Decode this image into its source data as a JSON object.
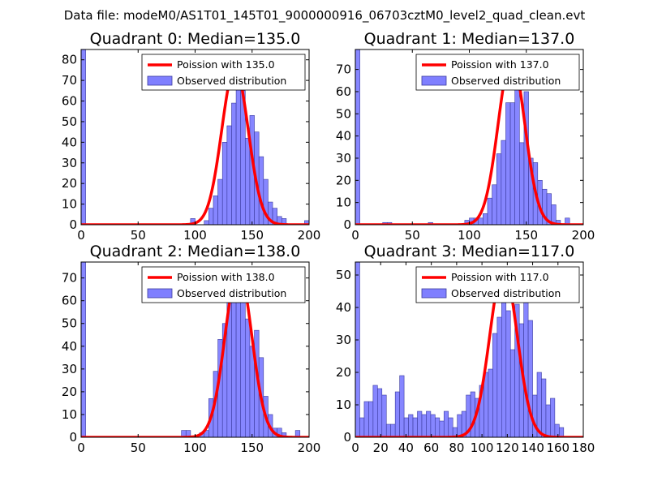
{
  "suptitle": "Data file: modeM0/AS1T01_145T01_9000000916_06703cztM0_level2_quad_clean.evt",
  "colors": {
    "bar_fill": "#7f7fff",
    "bar_edge": "#3b3b9e",
    "poisson_line": "#ff0000",
    "axes": "#000000",
    "legend_edge": "#000000"
  },
  "chart_data": [
    {
      "type": "bar",
      "title": "Quadrant 0: Median=135.0",
      "xlim": [
        0,
        200
      ],
      "ylim": [
        0,
        85
      ],
      "xticks": [
        "0",
        "50",
        "100",
        "150",
        "200"
      ],
      "xtick_values": [
        0,
        50,
        100,
        150,
        200
      ],
      "yticks": [
        "0",
        "10",
        "20",
        "30",
        "40",
        "50",
        "60",
        "70",
        "80"
      ],
      "ytick_values": [
        0,
        10,
        20,
        30,
        40,
        50,
        60,
        70,
        80
      ],
      "legend": [
        "Poission with 135.0",
        "Observed distribution"
      ],
      "poisson_mean": 135.0,
      "poisson_peak": 76,
      "poisson_sigma": 11.6,
      "bin_width": 4,
      "bins": [
        [
          0,
          85
        ],
        [
          96,
          3
        ],
        [
          108,
          2
        ],
        [
          112,
          8
        ],
        [
          116,
          14
        ],
        [
          120,
          22
        ],
        [
          124,
          40
        ],
        [
          128,
          48
        ],
        [
          132,
          59
        ],
        [
          136,
          67
        ],
        [
          140,
          65
        ],
        [
          144,
          42
        ],
        [
          148,
          53
        ],
        [
          152,
          45
        ],
        [
          156,
          33
        ],
        [
          160,
          22
        ],
        [
          164,
          11
        ],
        [
          168,
          8
        ],
        [
          172,
          4
        ],
        [
          176,
          3
        ],
        [
          196,
          2
        ]
      ]
    },
    {
      "type": "bar",
      "title": "Quadrant 1: Median=137.0",
      "xlim": [
        0,
        200
      ],
      "ylim": [
        0,
        79
      ],
      "xticks": [
        "0",
        "50",
        "100",
        "150",
        "200"
      ],
      "xtick_values": [
        0,
        50,
        100,
        150,
        200
      ],
      "yticks": [
        "0",
        "10",
        "20",
        "30",
        "40",
        "50",
        "60",
        "70"
      ],
      "ytick_values": [
        0,
        10,
        20,
        30,
        40,
        50,
        60,
        70
      ],
      "legend": [
        "Poission with 137.0",
        "Observed distribution"
      ],
      "poisson_mean": 137.0,
      "poisson_peak": 75,
      "poisson_sigma": 11.7,
      "bin_width": 4,
      "bins": [
        [
          0,
          79
        ],
        [
          24,
          1
        ],
        [
          28,
          1
        ],
        [
          64,
          1
        ],
        [
          96,
          2
        ],
        [
          100,
          3
        ],
        [
          104,
          3
        ],
        [
          108,
          3
        ],
        [
          112,
          5
        ],
        [
          116,
          12
        ],
        [
          120,
          18
        ],
        [
          124,
          32
        ],
        [
          128,
          38
        ],
        [
          132,
          55
        ],
        [
          136,
          55
        ],
        [
          140,
          65
        ],
        [
          144,
          37
        ],
        [
          148,
          60
        ],
        [
          152,
          30
        ],
        [
          156,
          28
        ],
        [
          160,
          20
        ],
        [
          164,
          16
        ],
        [
          168,
          14
        ],
        [
          172,
          9
        ],
        [
          176,
          2
        ],
        [
          184,
          3
        ]
      ]
    },
    {
      "type": "bar",
      "title": "Quadrant 2: Median=138.0",
      "xlim": [
        0,
        200
      ],
      "ylim": [
        0,
        77
      ],
      "xticks": [
        "0",
        "50",
        "100",
        "150",
        "200"
      ],
      "xtick_values": [
        0,
        50,
        100,
        150,
        200
      ],
      "yticks": [
        "0",
        "10",
        "20",
        "30",
        "40",
        "50",
        "60",
        "70"
      ],
      "ytick_values": [
        0,
        10,
        20,
        30,
        40,
        50,
        60,
        70
      ],
      "legend": [
        "Poission with 138.0",
        "Observed distribution"
      ],
      "poisson_mean": 138.0,
      "poisson_peak": 74,
      "poisson_sigma": 11.7,
      "bin_width": 4,
      "bins": [
        [
          0,
          77
        ],
        [
          88,
          3
        ],
        [
          92,
          3
        ],
        [
          104,
          2
        ],
        [
          108,
          3
        ],
        [
          112,
          17
        ],
        [
          116,
          29
        ],
        [
          120,
          43
        ],
        [
          124,
          50
        ],
        [
          128,
          60
        ],
        [
          132,
          65
        ],
        [
          136,
          68
        ],
        [
          140,
          63
        ],
        [
          144,
          52
        ],
        [
          148,
          40
        ],
        [
          152,
          47
        ],
        [
          156,
          35
        ],
        [
          160,
          18
        ],
        [
          164,
          10
        ],
        [
          168,
          4
        ],
        [
          172,
          4
        ],
        [
          176,
          2
        ],
        [
          188,
          3
        ]
      ]
    },
    {
      "type": "bar",
      "title": "Quadrant 3: Median=117.0",
      "xlim": [
        0,
        180
      ],
      "ylim": [
        0,
        54
      ],
      "xticks": [
        "0",
        "20",
        "40",
        "60",
        "80",
        "100",
        "120",
        "140",
        "160",
        "180"
      ],
      "xtick_values": [
        0,
        20,
        40,
        60,
        80,
        100,
        120,
        140,
        160,
        180
      ],
      "yticks": [
        "0",
        "10",
        "20",
        "30",
        "40",
        "50"
      ],
      "ytick_values": [
        0,
        10,
        20,
        30,
        40,
        50
      ],
      "legend": [
        "Poission with 117.0",
        "Observed distribution"
      ],
      "poisson_mean": 117.0,
      "poisson_peak": 52,
      "poisson_sigma": 10.8,
      "bin_width": 3.5,
      "bins": [
        [
          0,
          54
        ],
        [
          3.5,
          6
        ],
        [
          7,
          11
        ],
        [
          10.5,
          11
        ],
        [
          14,
          16
        ],
        [
          17.5,
          15
        ],
        [
          21,
          13
        ],
        [
          24.5,
          4
        ],
        [
          28,
          4
        ],
        [
          31.5,
          14
        ],
        [
          35,
          19
        ],
        [
          38.5,
          6
        ],
        [
          42,
          7
        ],
        [
          45.5,
          6
        ],
        [
          49,
          8
        ],
        [
          52.5,
          7
        ],
        [
          56,
          8
        ],
        [
          59.5,
          7
        ],
        [
          63,
          6
        ],
        [
          66.5,
          5
        ],
        [
          70,
          8
        ],
        [
          73.5,
          6
        ],
        [
          77,
          3
        ],
        [
          80.5,
          7
        ],
        [
          84,
          8
        ],
        [
          87.5,
          13
        ],
        [
          91,
          14
        ],
        [
          94.5,
          12
        ],
        [
          98,
          16
        ],
        [
          101.5,
          20
        ],
        [
          105,
          21
        ],
        [
          108.5,
          32
        ],
        [
          112,
          37
        ],
        [
          115.5,
          42
        ],
        [
          119,
          39
        ],
        [
          122.5,
          27
        ],
        [
          126,
          41
        ],
        [
          129.5,
          35
        ],
        [
          133,
          42
        ],
        [
          136.5,
          36
        ],
        [
          140,
          13
        ],
        [
          143.5,
          20
        ],
        [
          147,
          18
        ],
        [
          150.5,
          10
        ],
        [
          154,
          12
        ],
        [
          157.5,
          4
        ],
        [
          161,
          3
        ]
      ]
    }
  ]
}
